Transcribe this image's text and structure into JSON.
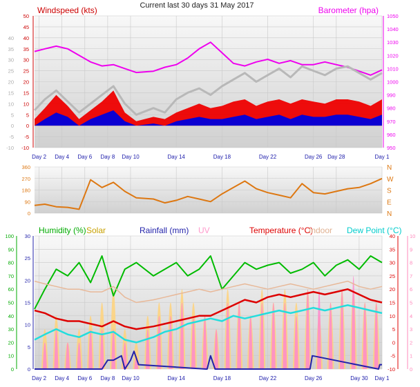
{
  "chart_data": [
    {
      "type": "line",
      "title": "Current last 30 days 31 May 2017",
      "legend": [
        {
          "text": "Windspeed (kts)",
          "color": "#cc0000"
        },
        {
          "text": "Barometer (hpa)",
          "color": "#ee00ee"
        }
      ],
      "x_ticks": [
        "Day 2",
        "Day 4",
        "Day 6",
        "Day 8",
        "Day 10",
        "Day 14",
        "Day 18",
        "Day 22",
        "Day 26",
        "Day 28",
        "Day 1"
      ],
      "x_tick_days": [
        2,
        4,
        6,
        8,
        10,
        14,
        18,
        22,
        26,
        28,
        32
      ],
      "xlim": [
        1.6,
        32
      ],
      "left_axis": {
        "ticks": [
          "50",
          "45",
          "40",
          "35",
          "30",
          "25",
          "20",
          "15",
          "10",
          "5",
          "0",
          "-5",
          "-10"
        ],
        "ylim": [
          -10,
          50
        ]
      },
      "ylabel_ticks": [
        "40",
        "35",
        "30",
        "25",
        "20",
        "15",
        "10",
        "5",
        "0",
        "-5",
        "-10"
      ],
      "right_axis": {
        "ticks": [
          "1050",
          "1040",
          "1030",
          "1020",
          "1010",
          "1000",
          "990",
          "980",
          "970",
          "960",
          "950"
        ],
        "ylim": [
          950,
          1050
        ]
      },
      "series": [
        {
          "name": "Barometer (hpa)",
          "color": "#ee00ee",
          "x": [
            1.6,
            2.5,
            3.5,
            4.5,
            5.5,
            6.5,
            7.5,
            8.5,
            9.5,
            10.5,
            12,
            13,
            14,
            15,
            16,
            17,
            18,
            19,
            20,
            21,
            22,
            23,
            24,
            25,
            26,
            27,
            28,
            29,
            30,
            31,
            32
          ],
          "values": [
            1023,
            1025,
            1027,
            1025,
            1020,
            1015,
            1012,
            1013,
            1010,
            1007,
            1008,
            1011,
            1013,
            1018,
            1025,
            1030,
            1022,
            1014,
            1012,
            1015,
            1017,
            1014,
            1016,
            1013,
            1013,
            1015,
            1013,
            1011,
            1008,
            1005,
            1009
          ]
        },
        {
          "name": "Wind gust",
          "color": "#b8b8b8",
          "x": [
            1.6,
            2.5,
            3.5,
            4.5,
            5.5,
            6.5,
            7.5,
            8.5,
            9.5,
            10.5,
            12,
            13,
            14,
            15,
            16,
            17,
            18,
            19,
            20,
            21,
            22,
            23,
            24,
            25,
            26,
            27,
            28,
            29,
            30,
            31,
            32
          ],
          "values": [
            7,
            12,
            16,
            11,
            6,
            10,
            14,
            18,
            10,
            5,
            8,
            6,
            12,
            15,
            17,
            14,
            18,
            21,
            24,
            20,
            23,
            26,
            22,
            27,
            25,
            23,
            26,
            27,
            24,
            21,
            24
          ]
        },
        {
          "name": "Wind max",
          "color": "#ee0000",
          "x": [
            1.6,
            2.5,
            3.5,
            4.5,
            5.5,
            6.5,
            7.5,
            8.5,
            9.5,
            10.5,
            12,
            13,
            14,
            15,
            16,
            17,
            18,
            19,
            20,
            21,
            22,
            23,
            24,
            25,
            26,
            27,
            28,
            29,
            30,
            31,
            32
          ],
          "values": [
            3,
            8,
            14,
            9,
            3,
            7,
            11,
            16,
            6,
            2,
            4,
            3,
            6,
            8,
            10,
            8,
            9,
            11,
            12,
            9,
            11,
            12,
            10,
            12,
            11,
            10,
            12,
            12,
            11,
            9,
            12
          ]
        },
        {
          "name": "Wind avg",
          "color": "#0000dd",
          "x": [
            1.6,
            2.5,
            3.5,
            4.5,
            5.5,
            6.5,
            7.5,
            8.5,
            9.5,
            10.5,
            12,
            13,
            14,
            15,
            16,
            17,
            18,
            19,
            20,
            21,
            22,
            23,
            24,
            25,
            26,
            27,
            28,
            29,
            30,
            31,
            32
          ],
          "values": [
            0,
            3,
            6,
            4,
            0,
            3,
            5,
            7,
            2,
            0,
            1,
            0,
            2,
            3,
            4,
            3,
            3,
            4,
            5,
            3,
            4,
            5,
            3,
            5,
            4,
            4,
            5,
            5,
            4,
            3,
            5
          ]
        }
      ]
    },
    {
      "type": "line",
      "series_name": "Wind direction",
      "y_ticks": [
        "360",
        "270",
        "180",
        "90",
        "0"
      ],
      "ylim": [
        0,
        360
      ],
      "compass": [
        "N",
        "W",
        "S",
        "E",
        "N"
      ],
      "color": "#dd7711",
      "series": [
        {
          "x": [
            1.6,
            2.5,
            3.5,
            4.5,
            5.5,
            6.5,
            7.5,
            8.5,
            9.5,
            10.5,
            12,
            13,
            14,
            15,
            16,
            17,
            18,
            19,
            20,
            21,
            22,
            23,
            24,
            25,
            26,
            27,
            28,
            29,
            30,
            31,
            32
          ],
          "values": [
            60,
            70,
            50,
            45,
            30,
            260,
            200,
            240,
            170,
            120,
            110,
            80,
            100,
            130,
            110,
            90,
            150,
            200,
            250,
            190,
            160,
            140,
            120,
            230,
            160,
            150,
            170,
            190,
            200,
            230,
            270
          ]
        }
      ]
    },
    {
      "type": "line",
      "legend": [
        {
          "text": "Humidity (%)",
          "color": "#00aa00"
        },
        {
          "text": "Solar",
          "color": "#c8a000"
        },
        {
          "text": "Rainfall (mm)",
          "color": "#2222aa"
        },
        {
          "text": "UV",
          "color": "#ff99cc"
        },
        {
          "text": "Temperature (°C)",
          "color": "#dd0000"
        },
        {
          "text": "Indoor",
          "color": "#e0b090"
        },
        {
          "text": "Dew Point (°C)",
          "color": "#00cccc"
        }
      ],
      "x_ticks": [
        "Day 2",
        "Day 4",
        "Day 6",
        "Day 8",
        "Day 10",
        "Day 14",
        "Day 18",
        "Day 22",
        "Day 26",
        "Day 30",
        "Day 1"
      ],
      "x_tick_days": [
        2,
        4,
        6,
        8,
        10,
        14,
        18,
        22,
        26,
        30,
        32
      ],
      "xlim": [
        1.6,
        32
      ],
      "humidity_axis": {
        "ticks": [
          "100",
          "90",
          "80",
          "70",
          "60",
          "50",
          "40",
          "30",
          "20",
          "10",
          "0"
        ],
        "ylim": [
          0,
          100
        ]
      },
      "rain_axis": {
        "ticks": [
          "30",
          "25",
          "20",
          "15",
          "10",
          "5",
          "0"
        ],
        "ylim": [
          0,
          30
        ]
      },
      "temp_axis": {
        "ticks": [
          "40",
          "35",
          "30",
          "25",
          "20",
          "15",
          "10",
          "5",
          "0",
          "-5",
          "-10"
        ],
        "ylim": [
          -10,
          40
        ]
      },
      "uv_axis": {
        "ticks": [
          "10",
          "9",
          "8",
          "7",
          "6",
          "5",
          "4",
          "3",
          "2",
          "1",
          "0"
        ],
        "ylim": [
          0,
          10
        ]
      },
      "series": [
        {
          "name": "Humidity (%)",
          "color": "#00bb00",
          "x": [
            1.6,
            2.5,
            3.5,
            4.5,
            5.5,
            6.5,
            7.5,
            8.5,
            9.5,
            10.5,
            12,
            13,
            14,
            15,
            16,
            17,
            18,
            19,
            20,
            21,
            22,
            23,
            24,
            25,
            26,
            27,
            28,
            29,
            30,
            31,
            32
          ],
          "values": [
            45,
            60,
            75,
            70,
            80,
            65,
            85,
            55,
            75,
            80,
            70,
            75,
            80,
            70,
            75,
            85,
            60,
            70,
            80,
            75,
            78,
            80,
            72,
            75,
            80,
            70,
            78,
            82,
            75,
            85,
            80
          ]
        },
        {
          "name": "Indoor",
          "color": "#e8b898",
          "x": [
            1.6,
            2.5,
            3.5,
            4.5,
            5.5,
            6.5,
            7.5,
            8.5,
            9.5,
            10.5,
            12,
            13,
            14,
            15,
            16,
            17,
            18,
            19,
            20,
            21,
            22,
            23,
            24,
            25,
            26,
            27,
            28,
            29,
            30,
            31,
            32
          ],
          "values": [
            23,
            22,
            21,
            20,
            20,
            19,
            19,
            21,
            17,
            15,
            16,
            17,
            18,
            19,
            20,
            19,
            20,
            21,
            22,
            21,
            20,
            21,
            22,
            21,
            20,
            21,
            22,
            23,
            21,
            20,
            21
          ]
        },
        {
          "name": "Temperature (°C)",
          "color": "#dd0000",
          "x": [
            1.6,
            2.5,
            3.5,
            4.5,
            5.5,
            6.5,
            7.5,
            8.5,
            9.5,
            10.5,
            12,
            13,
            14,
            15,
            16,
            17,
            18,
            19,
            20,
            21,
            22,
            23,
            24,
            25,
            26,
            27,
            28,
            29,
            30,
            31,
            32
          ],
          "values": [
            12,
            11,
            9,
            8,
            8,
            7,
            6,
            8,
            6,
            5,
            6,
            7,
            8,
            9,
            10,
            10,
            12,
            14,
            16,
            15,
            17,
            18,
            17,
            18,
            19,
            18,
            19,
            20,
            18,
            16,
            15
          ]
        },
        {
          "name": "Dew Point (°C)",
          "color": "#22dddd",
          "x": [
            1.6,
            2.5,
            3.5,
            4.5,
            5.5,
            6.5,
            7.5,
            8.5,
            9.5,
            10.5,
            12,
            13,
            14,
            15,
            16,
            17,
            18,
            19,
            20,
            21,
            22,
            23,
            24,
            25,
            26,
            27,
            28,
            29,
            30,
            31,
            32
          ],
          "values": [
            1,
            3,
            5,
            3,
            2,
            4,
            3,
            4,
            1,
            0,
            2,
            4,
            5,
            7,
            8,
            9,
            8,
            10,
            9,
            10,
            11,
            12,
            11,
            12,
            13,
            12,
            13,
            14,
            13,
            12,
            11
          ]
        },
        {
          "name": "Rainfall (mm)",
          "color": "#2222aa",
          "x": [
            1.6,
            7.5,
            8.0,
            8.5,
            9.2,
            9.5,
            10.0,
            10.3,
            10.7,
            16.6,
            16.7,
            17.0,
            17.4,
            25.6,
            25.7,
            25.9,
            31.7,
            31.8,
            32
          ],
          "values": [
            0,
            0,
            2,
            2,
            3,
            0,
            2,
            4,
            1,
            0,
            0,
            3,
            0,
            0,
            0,
            3,
            0,
            1,
            1
          ]
        }
      ],
      "daily_peaks": {
        "days": [
          2,
          3,
          4,
          5,
          6,
          7,
          8,
          9,
          10,
          11,
          12,
          13,
          14,
          15,
          16,
          17,
          18,
          19,
          20,
          21,
          22,
          23,
          24,
          25,
          26,
          27,
          28,
          29,
          30,
          31
        ],
        "solar": [
          3,
          4,
          2,
          3,
          4,
          5,
          6,
          3,
          2,
          4,
          5,
          5,
          6,
          5,
          4,
          3,
          6,
          5,
          4,
          6,
          5,
          6,
          5,
          6,
          4,
          5,
          6,
          6,
          5,
          5
        ],
        "uv": [
          2,
          3,
          2,
          2,
          3,
          3,
          3,
          2,
          1,
          3,
          4,
          4,
          5,
          4,
          4,
          3,
          5,
          5,
          4,
          5,
          5,
          5,
          4,
          6,
          6,
          5,
          6,
          7,
          5,
          5
        ]
      }
    }
  ]
}
